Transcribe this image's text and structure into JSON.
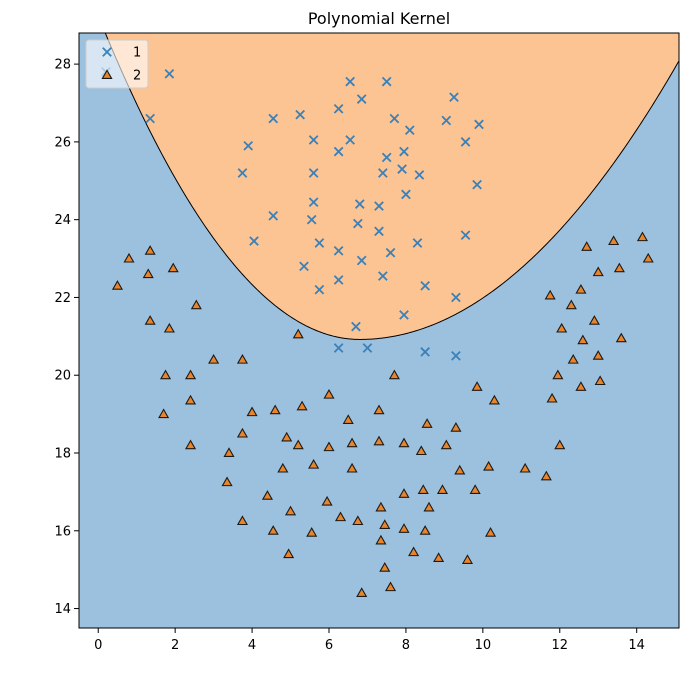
{
  "chart_data": {
    "type": "scatter",
    "title": "Polynomial Kernel",
    "xlabel": "",
    "ylabel": "",
    "xlim": [
      -0.5,
      15.1
    ],
    "ylim": [
      13.5,
      28.8
    ],
    "xticks": [
      0,
      2,
      4,
      6,
      8,
      10,
      12,
      14
    ],
    "yticks": [
      14,
      16,
      18,
      20,
      22,
      24,
      26,
      28
    ],
    "grid": false,
    "legend_position": "top-left",
    "decision_boundary": {
      "kind": "parabola",
      "vertex_x": 6.8,
      "vertex_y": 20.92,
      "left_coef": 0.18,
      "right_coef": 0.104,
      "region_above_class": "1",
      "region_below_class": "2"
    },
    "colors": {
      "region_above": "#fdc493",
      "region_below": "#9cc1de",
      "class_1_marker": "#3a80b9",
      "class_2_marker": "#e9842a",
      "class_2_edge": "#1a1a1a",
      "boundary": "#000000"
    },
    "series": [
      {
        "name": "1",
        "marker": "x",
        "points": [
          [
            0.2,
            27.8
          ],
          [
            1.85,
            27.75
          ],
          [
            1.35,
            26.6
          ],
          [
            4.55,
            26.6
          ],
          [
            5.25,
            26.7
          ],
          [
            6.55,
            27.55
          ],
          [
            7.5,
            27.55
          ],
          [
            6.85,
            27.1
          ],
          [
            6.25,
            26.85
          ],
          [
            9.25,
            27.15
          ],
          [
            3.9,
            25.9
          ],
          [
            5.6,
            26.05
          ],
          [
            6.55,
            26.05
          ],
          [
            7.7,
            26.6
          ],
          [
            8.1,
            26.3
          ],
          [
            9.05,
            26.55
          ],
          [
            9.9,
            26.45
          ],
          [
            3.75,
            25.2
          ],
          [
            6.25,
            25.75
          ],
          [
            7.5,
            25.6
          ],
          [
            7.95,
            25.75
          ],
          [
            9.55,
            26.0
          ],
          [
            5.6,
            25.2
          ],
          [
            7.4,
            25.2
          ],
          [
            7.9,
            25.3
          ],
          [
            8.35,
            25.15
          ],
          [
            4.55,
            24.1
          ],
          [
            5.6,
            24.45
          ],
          [
            6.8,
            24.4
          ],
          [
            7.3,
            24.35
          ],
          [
            8.0,
            24.65
          ],
          [
            9.85,
            24.9
          ],
          [
            5.55,
            24.0
          ],
          [
            6.75,
            23.9
          ],
          [
            4.05,
            23.45
          ],
          [
            5.75,
            23.4
          ],
          [
            7.3,
            23.7
          ],
          [
            6.25,
            23.2
          ],
          [
            7.6,
            23.15
          ],
          [
            8.3,
            23.4
          ],
          [
            9.55,
            23.6
          ],
          [
            5.35,
            22.8
          ],
          [
            6.85,
            22.95
          ],
          [
            6.25,
            22.45
          ],
          [
            7.4,
            22.55
          ],
          [
            5.75,
            22.2
          ],
          [
            8.5,
            22.3
          ],
          [
            9.3,
            22.0
          ],
          [
            7.95,
            21.55
          ],
          [
            6.7,
            21.25
          ],
          [
            6.25,
            20.7
          ],
          [
            7.0,
            20.7
          ],
          [
            8.5,
            20.6
          ],
          [
            9.3,
            20.5
          ]
        ]
      },
      {
        "name": "2",
        "marker": "^",
        "points": [
          [
            0.5,
            22.3
          ],
          [
            0.8,
            23.0
          ],
          [
            1.35,
            23.2
          ],
          [
            1.3,
            22.6
          ],
          [
            1.95,
            22.75
          ],
          [
            1.35,
            21.4
          ],
          [
            1.85,
            21.2
          ],
          [
            2.55,
            21.8
          ],
          [
            1.75,
            20.0
          ],
          [
            2.4,
            20.0
          ],
          [
            3.0,
            20.4
          ],
          [
            3.75,
            20.4
          ],
          [
            1.7,
            19.0
          ],
          [
            2.4,
            19.35
          ],
          [
            2.4,
            18.2
          ],
          [
            3.4,
            18.0
          ],
          [
            3.75,
            18.5
          ],
          [
            4.0,
            19.05
          ],
          [
            4.6,
            19.1
          ],
          [
            5.3,
            19.2
          ],
          [
            6.0,
            19.5
          ],
          [
            6.5,
            18.85
          ],
          [
            7.3,
            19.1
          ],
          [
            7.7,
            20.0
          ],
          [
            5.2,
            21.05
          ],
          [
            4.9,
            18.4
          ],
          [
            5.2,
            18.2
          ],
          [
            5.6,
            17.7
          ],
          [
            4.8,
            17.6
          ],
          [
            6.0,
            18.15
          ],
          [
            6.6,
            18.25
          ],
          [
            7.3,
            18.3
          ],
          [
            7.95,
            18.25
          ],
          [
            8.4,
            18.05
          ],
          [
            8.55,
            18.75
          ],
          [
            9.05,
            18.2
          ],
          [
            9.3,
            18.65
          ],
          [
            9.85,
            19.7
          ],
          [
            10.3,
            19.35
          ],
          [
            6.6,
            17.6
          ],
          [
            3.35,
            17.25
          ],
          [
            4.4,
            16.9
          ],
          [
            5.0,
            16.5
          ],
          [
            5.95,
            16.75
          ],
          [
            6.3,
            16.35
          ],
          [
            3.75,
            16.25
          ],
          [
            4.55,
            16.0
          ],
          [
            5.55,
            15.95
          ],
          [
            6.75,
            16.25
          ],
          [
            7.35,
            16.6
          ],
          [
            7.45,
            16.15
          ],
          [
            7.35,
            15.75
          ],
          [
            7.95,
            16.95
          ],
          [
            8.45,
            17.05
          ],
          [
            8.6,
            16.6
          ],
          [
            8.95,
            17.05
          ],
          [
            9.4,
            17.55
          ],
          [
            9.8,
            17.05
          ],
          [
            10.15,
            17.65
          ],
          [
            7.95,
            16.05
          ],
          [
            8.5,
            16.0
          ],
          [
            8.2,
            15.45
          ],
          [
            8.85,
            15.3
          ],
          [
            9.6,
            15.25
          ],
          [
            10.2,
            15.95
          ],
          [
            4.95,
            15.4
          ],
          [
            7.45,
            15.05
          ],
          [
            7.6,
            14.55
          ],
          [
            6.85,
            14.4
          ],
          [
            11.1,
            17.6
          ],
          [
            11.65,
            17.4
          ],
          [
            11.75,
            22.05
          ],
          [
            12.05,
            21.2
          ],
          [
            12.3,
            21.8
          ],
          [
            12.55,
            22.2
          ],
          [
            12.7,
            23.3
          ],
          [
            12.9,
            21.4
          ],
          [
            13.0,
            22.65
          ],
          [
            13.4,
            23.45
          ],
          [
            13.55,
            22.75
          ],
          [
            14.15,
            23.55
          ],
          [
            14.3,
            23.0
          ],
          [
            11.95,
            20.0
          ],
          [
            12.35,
            20.4
          ],
          [
            12.6,
            20.9
          ],
          [
            13.0,
            20.5
          ],
          [
            13.6,
            20.95
          ],
          [
            11.8,
            19.4
          ],
          [
            12.55,
            19.7
          ],
          [
            13.05,
            19.85
          ],
          [
            12.0,
            18.2
          ]
        ]
      }
    ]
  }
}
